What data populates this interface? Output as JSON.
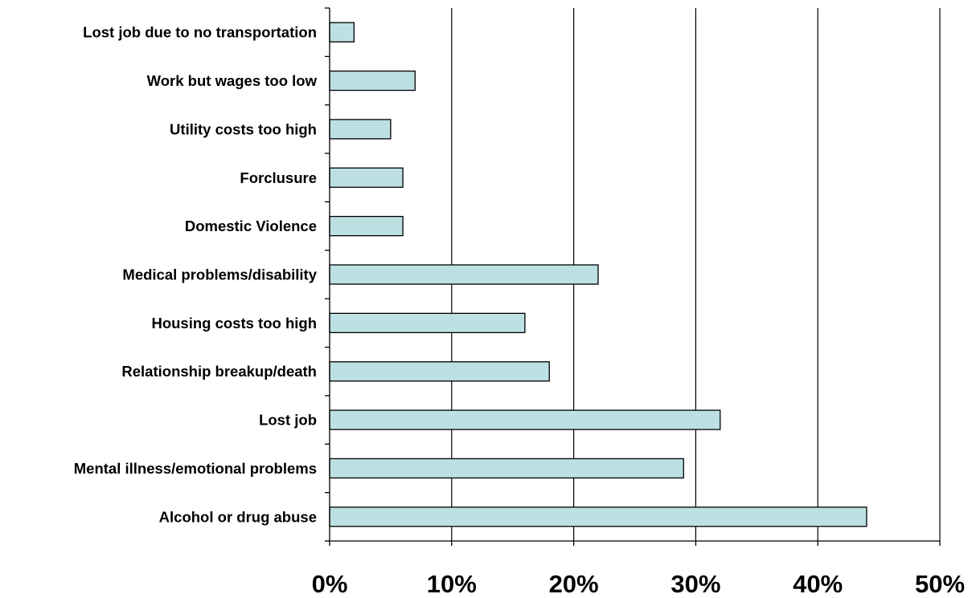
{
  "chart_data": {
    "type": "bar",
    "orientation": "horizontal",
    "categories": [
      "Lost job due to no transportation",
      "Work but wages too low",
      "Utility costs too high",
      "Forclusure",
      "Domestic Violence",
      "Medical problems/disability",
      "Housing costs too high",
      "Relationship breakup/death",
      "Lost job",
      "Mental illness/emotional problems",
      "Alcohol or drug abuse"
    ],
    "values": [
      2,
      7,
      5,
      6,
      6,
      22,
      16,
      18,
      32,
      29,
      44
    ],
    "value_unit": "%",
    "xlim": [
      0,
      50
    ],
    "x_ticks": [
      "0%",
      "10%",
      "20%",
      "30%",
      "40%",
      "50%"
    ],
    "grid": "vertical gridlines",
    "legend": "none",
    "bar_color": "#bde0e3"
  }
}
